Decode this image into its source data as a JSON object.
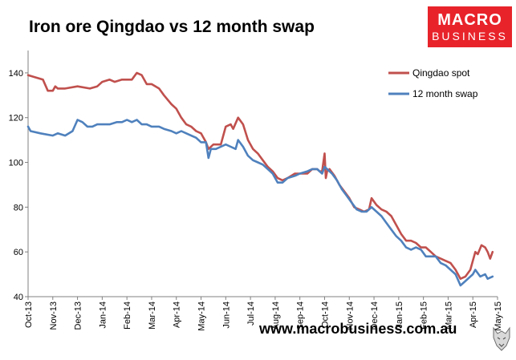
{
  "header": {
    "title": "Iron ore Qingdao vs 12 month swap"
  },
  "logo": {
    "line1": "MACRO",
    "line2": "BUSINESS"
  },
  "footer": {
    "url": "www.macrobusiness.com.au"
  },
  "colors": {
    "qingdao": "#c0504d",
    "swap": "#4f81bd",
    "logo_bg": "#e8232a",
    "axis": "#808080"
  },
  "chart_data": {
    "type": "line",
    "title": "Iron ore Qingdao vs 12 month swap",
    "xlabel": "",
    "ylabel": "",
    "x_ticks": [
      "Oct-13",
      "Nov-13",
      "Dec-13",
      "Jan-14",
      "Feb-14",
      "Mar-14",
      "Apr-14",
      "May-14",
      "Jun-14",
      "Jul-14",
      "Aug-14",
      "Sep-14",
      "Oct-14",
      "Nov-14",
      "Dec-14",
      "Jan-15",
      "Feb-15",
      "Mar-15",
      "Apr-15",
      "May-15"
    ],
    "y_ticks": [
      40,
      60,
      80,
      100,
      120,
      140
    ],
    "ylim": [
      40,
      150
    ],
    "grid": false,
    "legend_position": "top-right",
    "series": [
      {
        "name": "Qingdao spot",
        "color": "#c0504d",
        "points": [
          [
            0.0,
            139
          ],
          [
            0.3,
            138
          ],
          [
            0.6,
            137
          ],
          [
            0.8,
            132
          ],
          [
            1.0,
            132
          ],
          [
            1.1,
            134
          ],
          [
            1.2,
            133
          ],
          [
            1.5,
            133
          ],
          [
            2.0,
            134
          ],
          [
            2.5,
            133
          ],
          [
            2.8,
            134
          ],
          [
            3.0,
            136
          ],
          [
            3.3,
            137
          ],
          [
            3.5,
            136
          ],
          [
            3.8,
            137
          ],
          [
            4.0,
            137
          ],
          [
            4.2,
            137
          ],
          [
            4.4,
            140
          ],
          [
            4.6,
            139
          ],
          [
            4.8,
            135
          ],
          [
            5.0,
            135
          ],
          [
            5.3,
            133
          ],
          [
            5.5,
            130
          ],
          [
            5.8,
            126
          ],
          [
            6.0,
            124
          ],
          [
            6.2,
            120
          ],
          [
            6.4,
            117
          ],
          [
            6.6,
            116
          ],
          [
            6.8,
            114
          ],
          [
            7.0,
            113
          ],
          [
            7.2,
            109
          ],
          [
            7.3,
            106
          ],
          [
            7.5,
            108
          ],
          [
            7.8,
            108
          ],
          [
            8.0,
            116
          ],
          [
            8.2,
            117
          ],
          [
            8.3,
            115
          ],
          [
            8.5,
            120
          ],
          [
            8.7,
            117
          ],
          [
            8.9,
            110
          ],
          [
            9.1,
            106
          ],
          [
            9.3,
            104
          ],
          [
            9.5,
            101
          ],
          [
            9.7,
            98
          ],
          [
            9.9,
            96
          ],
          [
            10.1,
            93
          ],
          [
            10.3,
            92
          ],
          [
            10.5,
            93
          ],
          [
            10.8,
            95
          ],
          [
            11.0,
            95
          ],
          [
            11.3,
            95
          ],
          [
            11.5,
            97
          ],
          [
            11.7,
            97
          ],
          [
            11.8,
            96
          ],
          [
            11.9,
            96
          ],
          [
            12.0,
            104
          ],
          [
            12.05,
            93
          ],
          [
            12.1,
            96
          ],
          [
            12.2,
            97
          ],
          [
            12.4,
            94
          ],
          [
            12.6,
            90
          ],
          [
            12.8,
            87
          ],
          [
            13.0,
            84
          ],
          [
            13.2,
            80
          ],
          [
            13.4,
            79
          ],
          [
            13.6,
            78
          ],
          [
            13.8,
            79
          ],
          [
            13.9,
            84
          ],
          [
            14.1,
            81
          ],
          [
            14.3,
            79
          ],
          [
            14.5,
            78
          ],
          [
            14.7,
            76
          ],
          [
            14.9,
            72
          ],
          [
            15.1,
            68
          ],
          [
            15.3,
            65
          ],
          [
            15.5,
            65
          ],
          [
            15.7,
            64
          ],
          [
            15.9,
            62
          ],
          [
            16.1,
            62
          ],
          [
            16.3,
            60
          ],
          [
            16.5,
            58
          ],
          [
            16.7,
            57
          ],
          [
            16.9,
            56
          ],
          [
            17.1,
            55
          ],
          [
            17.3,
            52
          ],
          [
            17.5,
            48
          ],
          [
            17.7,
            49
          ],
          [
            17.9,
            52
          ],
          [
            18.0,
            56
          ],
          [
            18.1,
            60
          ],
          [
            18.2,
            59
          ],
          [
            18.35,
            63
          ],
          [
            18.5,
            62
          ],
          [
            18.6,
            60
          ],
          [
            18.7,
            57
          ],
          [
            18.8,
            60
          ]
        ]
      },
      {
        "name": "12 month swap",
        "color": "#4f81bd",
        "points": [
          [
            0.0,
            116
          ],
          [
            0.1,
            114
          ],
          [
            0.5,
            113
          ],
          [
            1.0,
            112
          ],
          [
            1.2,
            113
          ],
          [
            1.5,
            112
          ],
          [
            1.8,
            114
          ],
          [
            2.0,
            119
          ],
          [
            2.2,
            118
          ],
          [
            2.4,
            116
          ],
          [
            2.6,
            116
          ],
          [
            2.8,
            117
          ],
          [
            3.0,
            117
          ],
          [
            3.3,
            117
          ],
          [
            3.6,
            118
          ],
          [
            3.8,
            118
          ],
          [
            4.0,
            119
          ],
          [
            4.2,
            118
          ],
          [
            4.4,
            119
          ],
          [
            4.6,
            117
          ],
          [
            4.8,
            117
          ],
          [
            5.0,
            116
          ],
          [
            5.3,
            116
          ],
          [
            5.5,
            115
          ],
          [
            5.8,
            114
          ],
          [
            6.0,
            113
          ],
          [
            6.2,
            114
          ],
          [
            6.4,
            113
          ],
          [
            6.6,
            112
          ],
          [
            6.8,
            111
          ],
          [
            7.0,
            109
          ],
          [
            7.2,
            109
          ],
          [
            7.3,
            102
          ],
          [
            7.4,
            106
          ],
          [
            7.6,
            106
          ],
          [
            7.8,
            107
          ],
          [
            8.0,
            108
          ],
          [
            8.2,
            107
          ],
          [
            8.4,
            106
          ],
          [
            8.5,
            110
          ],
          [
            8.7,
            107
          ],
          [
            8.9,
            103
          ],
          [
            9.1,
            101
          ],
          [
            9.3,
            100
          ],
          [
            9.5,
            99
          ],
          [
            9.7,
            97
          ],
          [
            9.9,
            95
          ],
          [
            10.1,
            91
          ],
          [
            10.3,
            91
          ],
          [
            10.5,
            93
          ],
          [
            10.8,
            94
          ],
          [
            11.0,
            95
          ],
          [
            11.3,
            96
          ],
          [
            11.5,
            97
          ],
          [
            11.7,
            97
          ],
          [
            11.9,
            95
          ],
          [
            12.0,
            98
          ],
          [
            12.1,
            97
          ],
          [
            12.3,
            95
          ],
          [
            12.5,
            92
          ],
          [
            12.7,
            88
          ],
          [
            12.9,
            85
          ],
          [
            13.1,
            82
          ],
          [
            13.3,
            79
          ],
          [
            13.5,
            78
          ],
          [
            13.7,
            78
          ],
          [
            13.9,
            80
          ],
          [
            14.1,
            78
          ],
          [
            14.3,
            76
          ],
          [
            14.5,
            73
          ],
          [
            14.7,
            70
          ],
          [
            14.9,
            67
          ],
          [
            15.1,
            65
          ],
          [
            15.3,
            62
          ],
          [
            15.5,
            61
          ],
          [
            15.7,
            62
          ],
          [
            15.9,
            61
          ],
          [
            16.1,
            58
          ],
          [
            16.3,
            58
          ],
          [
            16.5,
            58
          ],
          [
            16.7,
            55
          ],
          [
            16.9,
            54
          ],
          [
            17.1,
            52
          ],
          [
            17.3,
            50
          ],
          [
            17.5,
            45
          ],
          [
            17.7,
            47
          ],
          [
            17.9,
            49
          ],
          [
            18.0,
            50
          ],
          [
            18.1,
            52
          ],
          [
            18.3,
            49
          ],
          [
            18.5,
            50
          ],
          [
            18.6,
            48
          ],
          [
            18.8,
            49
          ]
        ]
      }
    ]
  }
}
